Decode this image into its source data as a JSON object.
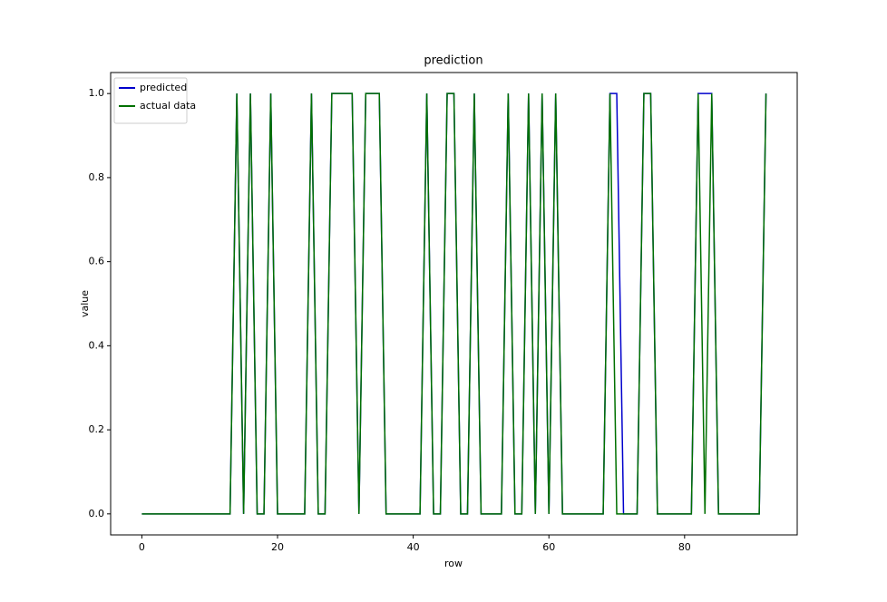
{
  "chart_data": {
    "type": "line",
    "title": "prediction",
    "x_label": "row",
    "y_label": "value",
    "x": [
      0,
      1,
      2,
      3,
      4,
      5,
      6,
      7,
      8,
      9,
      10,
      11,
      12,
      13,
      14,
      15,
      16,
      17,
      18,
      19,
      20,
      21,
      22,
      23,
      24,
      25,
      26,
      27,
      28,
      29,
      30,
      31,
      32,
      33,
      34,
      35,
      36,
      37,
      38,
      39,
      40,
      41,
      42,
      43,
      44,
      45,
      46,
      47,
      48,
      49,
      50,
      51,
      52,
      53,
      54,
      55,
      56,
      57,
      58,
      59,
      60,
      61,
      62,
      63,
      64,
      65,
      66,
      67,
      68,
      69,
      70,
      71,
      72,
      73,
      74,
      75,
      76,
      77,
      78,
      79,
      80,
      81,
      82,
      83,
      84,
      85,
      86,
      87,
      88,
      89,
      90,
      91,
      92
    ],
    "series": [
      {
        "name": "predicted",
        "color": "#0000cc",
        "values": [
          0,
          0,
          0,
          0,
          0,
          0,
          0,
          0,
          0,
          0,
          0,
          0,
          0,
          0,
          1,
          0,
          1,
          0,
          0,
          1,
          0,
          0,
          0,
          0,
          0,
          1,
          0,
          0,
          1,
          1,
          1,
          1,
          0,
          1,
          1,
          1,
          0,
          0,
          0,
          0,
          0,
          0,
          1,
          0,
          0,
          1,
          1,
          0,
          0,
          1,
          0,
          0,
          0,
          0,
          1,
          0,
          0,
          1,
          0,
          1,
          0,
          1,
          0,
          0,
          0,
          0,
          0,
          0,
          0,
          1,
          1,
          0,
          0,
          0,
          1,
          1,
          0,
          0,
          0,
          0,
          0,
          0,
          1,
          1,
          1,
          0,
          0,
          0,
          0,
          0,
          0,
          0,
          1
        ]
      },
      {
        "name": "actual data",
        "color": "#007000",
        "values": [
          0,
          0,
          0,
          0,
          0,
          0,
          0,
          0,
          0,
          0,
          0,
          0,
          0,
          0,
          1,
          0,
          1,
          0,
          0,
          1,
          0,
          0,
          0,
          0,
          0,
          1,
          0,
          0,
          1,
          1,
          1,
          1,
          0,
          1,
          1,
          1,
          0,
          0,
          0,
          0,
          0,
          0,
          1,
          0,
          0,
          1,
          1,
          0,
          0,
          1,
          0,
          0,
          0,
          0,
          1,
          0,
          0,
          1,
          0,
          1,
          0,
          1,
          0,
          0,
          0,
          0,
          0,
          0,
          0,
          1,
          0,
          0,
          0,
          0,
          1,
          1,
          0,
          0,
          0,
          0,
          0,
          0,
          1,
          0,
          1,
          0,
          0,
          0,
          0,
          0,
          0,
          0,
          1
        ]
      }
    ],
    "xlim": [
      -4.6,
      96.6
    ],
    "ylim": [
      -0.05,
      1.05
    ],
    "xticks": [
      0,
      20,
      40,
      60,
      80
    ],
    "yticks": [
      {
        "value": 0,
        "label": "0.0"
      },
      0.2,
      0.4,
      0.6,
      0.8,
      {
        "value": 1,
        "label": "1.0"
      }
    ],
    "legend": "upper left",
    "grid": false
  }
}
